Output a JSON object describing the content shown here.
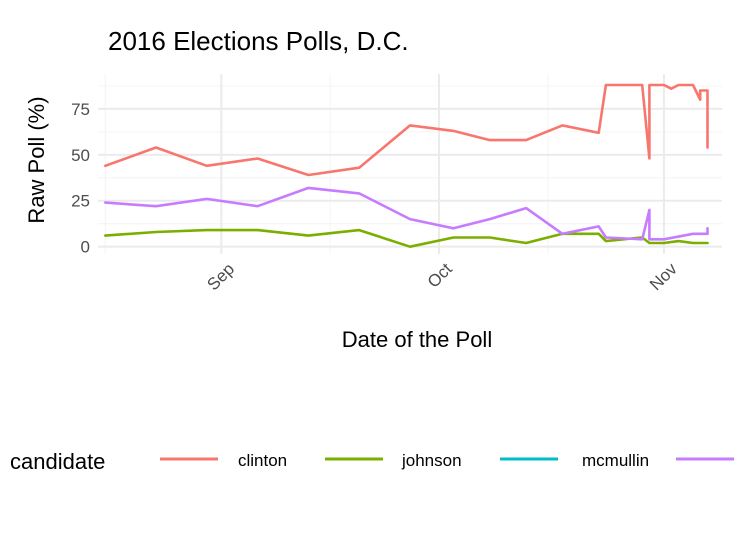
{
  "chart_data": {
    "type": "line",
    "title": "2016 Elections Polls, D.C.",
    "xlabel": "Date of the Poll",
    "ylabel": "Raw Poll (%)",
    "x_type": "date",
    "xlim": [
      "2016-08-15",
      "2016-11-09"
    ],
    "ylim": [
      -4,
      94
    ],
    "y_ticks": [
      0,
      25,
      50,
      75
    ],
    "y_minor_ticks": [
      12.5,
      37.5,
      62.5,
      87.5
    ],
    "x_ticks": [
      {
        "date": "2016-09-01",
        "label": "Sep"
      },
      {
        "date": "2016-10-01",
        "label": "Oct"
      },
      {
        "date": "2016-11-01",
        "label": "Nov"
      }
    ],
    "x_minor_ticks": [
      "2016-08-16",
      "2016-09-16",
      "2016-10-16"
    ],
    "grid": true,
    "legend": {
      "title": "candidate",
      "position": "bottom",
      "entries": [
        "clinton",
        "johnson",
        "mcmullin",
        ""
      ]
    },
    "series": [
      {
        "name": "clinton",
        "color": "#F8766D",
        "points": [
          [
            "2016-08-16",
            44
          ],
          [
            "2016-08-23",
            54
          ],
          [
            "2016-08-30",
            44
          ],
          [
            "2016-09-06",
            48
          ],
          [
            "2016-09-13",
            39
          ],
          [
            "2016-09-20",
            43
          ],
          [
            "2016-09-27",
            66
          ],
          [
            "2016-10-03",
            63
          ],
          [
            "2016-10-08",
            58
          ],
          [
            "2016-10-13",
            58
          ],
          [
            "2016-10-18",
            66
          ],
          [
            "2016-10-23",
            62
          ],
          [
            "2016-10-24",
            88
          ],
          [
            "2016-10-29",
            88
          ],
          [
            "2016-10-30",
            48
          ],
          [
            "2016-10-30",
            88
          ],
          [
            "2016-11-01",
            88
          ],
          [
            "2016-11-02",
            86
          ],
          [
            "2016-11-03",
            88
          ],
          [
            "2016-11-05",
            88
          ],
          [
            "2016-11-06",
            80
          ],
          [
            "2016-11-06",
            85
          ],
          [
            "2016-11-07",
            85
          ],
          [
            "2016-11-07",
            54
          ]
        ]
      },
      {
        "name": "johnson",
        "color": "#7CAE00",
        "points": [
          [
            "2016-08-16",
            6
          ],
          [
            "2016-08-23",
            8
          ],
          [
            "2016-08-30",
            9
          ],
          [
            "2016-09-06",
            9
          ],
          [
            "2016-09-13",
            6
          ],
          [
            "2016-09-20",
            9
          ],
          [
            "2016-09-27",
            0
          ],
          [
            "2016-10-03",
            5
          ],
          [
            "2016-10-08",
            5
          ],
          [
            "2016-10-13",
            2
          ],
          [
            "2016-10-18",
            7
          ],
          [
            "2016-10-23",
            7
          ],
          [
            "2016-10-24",
            3
          ],
          [
            "2016-10-29",
            5
          ],
          [
            "2016-10-30",
            2
          ],
          [
            "2016-11-01",
            2
          ],
          [
            "2016-11-03",
            3
          ],
          [
            "2016-11-05",
            2
          ],
          [
            "2016-11-07",
            2
          ]
        ]
      },
      {
        "name": "mcmullin",
        "color": "#00BFC4",
        "points": []
      },
      {
        "name": "",
        "color": "#C77CFF",
        "points": [
          [
            "2016-08-16",
            24
          ],
          [
            "2016-08-23",
            22
          ],
          [
            "2016-08-30",
            26
          ],
          [
            "2016-09-06",
            22
          ],
          [
            "2016-09-13",
            32
          ],
          [
            "2016-09-20",
            29
          ],
          [
            "2016-09-27",
            15
          ],
          [
            "2016-10-03",
            10
          ],
          [
            "2016-10-08",
            15
          ],
          [
            "2016-10-13",
            21
          ],
          [
            "2016-10-18",
            7
          ],
          [
            "2016-10-23",
            11
          ],
          [
            "2016-10-24",
            5
          ],
          [
            "2016-10-29",
            4
          ],
          [
            "2016-10-30",
            20
          ],
          [
            "2016-10-30",
            4
          ],
          [
            "2016-11-01",
            4
          ],
          [
            "2016-11-05",
            7
          ],
          [
            "2016-11-07",
            7
          ],
          [
            "2016-11-07",
            10
          ]
        ]
      }
    ]
  }
}
